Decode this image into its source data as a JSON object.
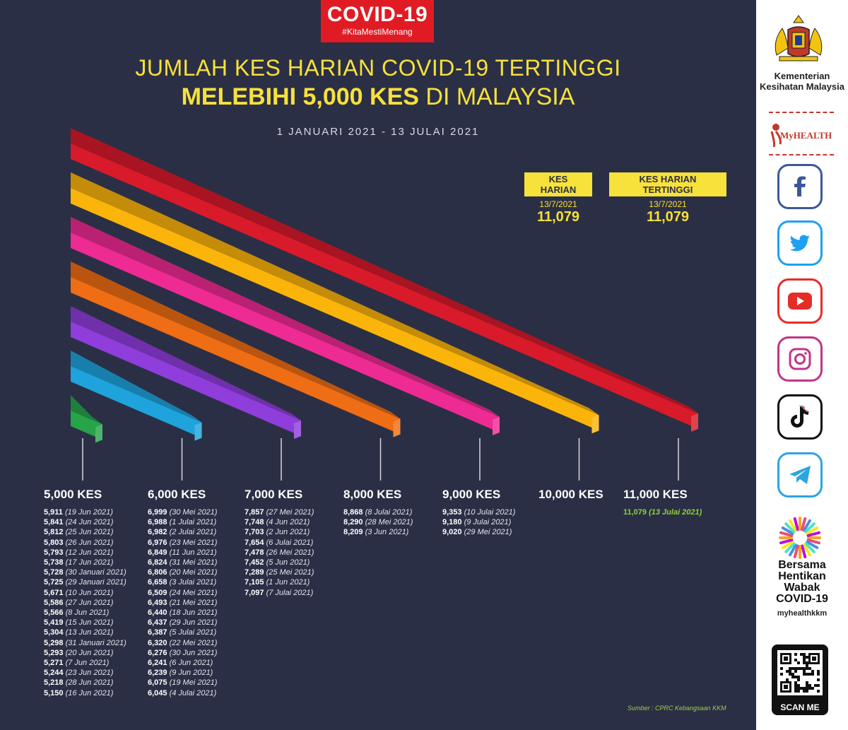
{
  "header": {
    "badge_title": "COVID-19",
    "badge_tag": "#KitaMestiMenang",
    "title_line1": "JUMLAH KES HARIAN COVID-19 TERTINGGI",
    "title_line2_bold": "MELEBIHI 5,000 KES",
    "title_line2_rest": " DI MALAYSIA",
    "date_range": "1 JANUARI 2021 - 13 JULAI 2021"
  },
  "stats": [
    {
      "label": "KES HARIAN",
      "date": "13/7/2021",
      "value": "11,079"
    },
    {
      "label": "KES HARIAN TERTINGGI",
      "date": "13/7/2021",
      "value": "11,079"
    }
  ],
  "chart_data": {
    "type": "bar",
    "title": "JUMLAH KES HARIAN COVID-19 TERTINGGI MELEBIHI 5,000 KES DI MALAYSIA",
    "subtitle": "1 JANUARI 2021 - 13 JULAI 2021",
    "categories": [
      "5,000 KES",
      "6,000 KES",
      "7,000 KES",
      "8,000 KES",
      "9,000 KES",
      "10,000 KES",
      "11,000 KES"
    ],
    "bar_colors": [
      "#27a34a",
      "#1fa3dc",
      "#8f3ddb",
      "#ef6d14",
      "#ee2a93",
      "#fbb40a",
      "#d81a2a"
    ],
    "bar_values": [
      5000,
      6000,
      7000,
      8000,
      9000,
      10000,
      11000
    ],
    "groups": [
      {
        "name": "5,000 KES",
        "entries": [
          {
            "value": "5,911",
            "date": "(19 Jun 2021)"
          },
          {
            "value": "5,841",
            "date": "(24 Jun 2021)"
          },
          {
            "value": "5,812",
            "date": "(25 Jun 2021)"
          },
          {
            "value": "5,803",
            "date": "(26 Jun 2021)"
          },
          {
            "value": "5,793",
            "date": "(12 Jun 2021)"
          },
          {
            "value": "5,738",
            "date": "(17 Jun 2021)"
          },
          {
            "value": "5,728",
            "date": "(30 Januari 2021)"
          },
          {
            "value": "5,725",
            "date": "(29 Januari 2021)"
          },
          {
            "value": "5,671",
            "date": "(10 Jun 2021)"
          },
          {
            "value": "5,586",
            "date": "(27 Jun 2021)"
          },
          {
            "value": "5,566",
            "date": "(8 Jun 2021)"
          },
          {
            "value": "5,419",
            "date": "(15 Jun 2021)"
          },
          {
            "value": "5,304",
            "date": "(13 Jun 2021)"
          },
          {
            "value": "5,298",
            "date": "(31 Januari 2021)"
          },
          {
            "value": "5,293",
            "date": "(20 Jun 2021)"
          },
          {
            "value": "5,271",
            "date": "(7 Jun 2021)"
          },
          {
            "value": "5,244",
            "date": "(23 Jun 2021)"
          },
          {
            "value": "5,218",
            "date": "(28 Jun 2021)"
          },
          {
            "value": "5,150",
            "date": "(16 Jun 2021)"
          }
        ]
      },
      {
        "name": "6,000 KES",
        "entries": [
          {
            "value": "6,999",
            "date": "(30 Mei 2021)"
          },
          {
            "value": "6,988",
            "date": "(1 Julai 2021)"
          },
          {
            "value": "6,982",
            "date": "(2 Julai 2021)"
          },
          {
            "value": "6,976",
            "date": "(23 Mei 2021)"
          },
          {
            "value": "6,849",
            "date": "(11 Jun 2021)"
          },
          {
            "value": "6,824",
            "date": "(31 Mei 2021)"
          },
          {
            "value": "6,806",
            "date": "(20 Mei 2021)"
          },
          {
            "value": "6,658",
            "date": "(3 Julai 2021)"
          },
          {
            "value": "6,509",
            "date": "(24 Mei 2021)"
          },
          {
            "value": "6,493",
            "date": "(21 Mei 2021)"
          },
          {
            "value": "6,440",
            "date": "(18 Jun 2021)"
          },
          {
            "value": "6,437",
            "date": "(29 Jun 2021)"
          },
          {
            "value": "6,387",
            "date": "(5 Julai 2021)"
          },
          {
            "value": "6,320",
            "date": "(22 Mei 2021)"
          },
          {
            "value": "6,276",
            "date": "(30 Jun 2021)"
          },
          {
            "value": "6,241",
            "date": "(6 Jun 2021)"
          },
          {
            "value": "6,239",
            "date": "(9 Jun 2021)"
          },
          {
            "value": "6,075",
            "date": "(19 Mei 2021)"
          },
          {
            "value": "6,045",
            "date": "(4 Julai 2021)"
          }
        ]
      },
      {
        "name": "7,000 KES",
        "entries": [
          {
            "value": "7,857",
            "date": "(27 Mei 2021)"
          },
          {
            "value": "7,748",
            "date": "(4 Jun 2021)"
          },
          {
            "value": "7,703",
            "date": "(2 Jun 2021)"
          },
          {
            "value": "7,654",
            "date": "(6 Julai 2021)"
          },
          {
            "value": "7,478",
            "date": "(26 Mei 2021)"
          },
          {
            "value": "7,452",
            "date": "(5 Jun 2021)"
          },
          {
            "value": "7,289",
            "date": "(25 Mei 2021)"
          },
          {
            "value": "7,105",
            "date": "(1 Jun 2021)"
          },
          {
            "value": "7,097",
            "date": "(7 Julai 2021)"
          }
        ]
      },
      {
        "name": "8,000 KES",
        "entries": [
          {
            "value": "8,868",
            "date": "(8 Julai 2021)"
          },
          {
            "value": "8,290",
            "date": "(28 Mei 2021)"
          },
          {
            "value": "8,209",
            "date": "(3 Jun 2021)"
          }
        ]
      },
      {
        "name": "9,000 KES",
        "entries": [
          {
            "value": "9,353",
            "date": "(10 Julai 2021)"
          },
          {
            "value": "9,180",
            "date": "(9 Julai 2021)"
          },
          {
            "value": "9,020",
            "date": "(29 Mei 2021)"
          }
        ]
      },
      {
        "name": "10,000 KES",
        "entries": []
      },
      {
        "name": "11,000 KES",
        "entries": [
          {
            "value": "11,079",
            "date": "(13 Julai 2021)",
            "highlight": true
          }
        ]
      }
    ]
  },
  "source": "Sumber : CPRC Kebangsaan KKM",
  "sidebar": {
    "ministry": "Kementerian Kesihatan Malaysia",
    "myhealth": "MyHEALTH",
    "social": [
      {
        "icon": "facebook-icon",
        "color": "#3b5998"
      },
      {
        "icon": "twitter-icon",
        "color": "#1da1f2"
      },
      {
        "icon": "youtube-icon",
        "color": "#e52d27"
      },
      {
        "icon": "instagram-icon",
        "color": "#c13584"
      },
      {
        "icon": "tiktok-icon",
        "color": "#111111"
      },
      {
        "icon": "telegram-icon",
        "color": "#2ca5e0"
      }
    ],
    "campaign_lines": [
      "Bersama",
      "Hentikan",
      "Wabak",
      "COVID-19"
    ],
    "handle": "myhealthkkm",
    "scan": "SCAN ME"
  }
}
